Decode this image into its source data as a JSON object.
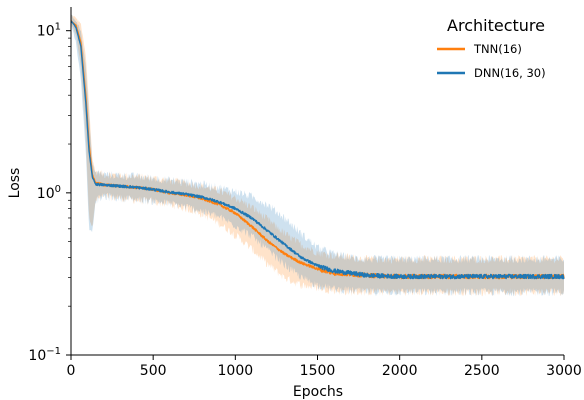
{
  "chart_data": {
    "type": "line",
    "xlabel": "Epochs",
    "ylabel": "Loss",
    "xlim": [
      0,
      3000
    ],
    "ylim": [
      0.1,
      14
    ],
    "yscale": "log",
    "grid": false,
    "legend_title": "Architecture",
    "legend_placement": "top-right",
    "x_ticks": [
      0,
      500,
      1000,
      1500,
      2000,
      2500,
      3000
    ],
    "x_tick_labels": [
      "0",
      "500",
      "1000",
      "1500",
      "2000",
      "2500",
      "3000"
    ],
    "y_ticks": [
      0.1,
      1,
      10
    ],
    "y_tick_labels": [
      {
        "base": "10",
        "exp": "−1"
      },
      {
        "base": "10",
        "exp": "0"
      },
      {
        "base": "10",
        "exp": "1"
      }
    ],
    "series": [
      {
        "name": "TNN(16)",
        "color": "#ff7f0e",
        "x": [
          0,
          30,
          60,
          90,
          110,
          130,
          150,
          200,
          300,
          400,
          500,
          600,
          700,
          800,
          900,
          1000,
          1100,
          1200,
          1300,
          1400,
          1500,
          1600,
          1700,
          1800,
          2000,
          2200,
          2500,
          2800,
          3000
        ],
        "y": [
          11.5,
          10.8,
          8.5,
          4.0,
          2.0,
          1.3,
          1.15,
          1.12,
          1.1,
          1.08,
          1.05,
          1.0,
          0.97,
          0.92,
          0.85,
          0.75,
          0.62,
          0.5,
          0.42,
          0.37,
          0.34,
          0.32,
          0.315,
          0.31,
          0.305,
          0.305,
          0.305,
          0.305,
          0.305
        ],
        "band_lower": [
          11.0,
          9.5,
          6.0,
          2.2,
          0.7,
          0.62,
          0.9,
          0.95,
          0.93,
          0.9,
          0.88,
          0.85,
          0.8,
          0.74,
          0.65,
          0.55,
          0.45,
          0.36,
          0.3,
          0.27,
          0.26,
          0.25,
          0.245,
          0.245,
          0.245,
          0.245,
          0.245,
          0.245,
          0.245
        ],
        "band_upper": [
          12.5,
          12.0,
          11.0,
          7.0,
          3.5,
          1.6,
          1.35,
          1.3,
          1.28,
          1.26,
          1.23,
          1.19,
          1.15,
          1.1,
          1.03,
          0.93,
          0.82,
          0.68,
          0.56,
          0.48,
          0.43,
          0.41,
          0.4,
          0.39,
          0.39,
          0.39,
          0.39,
          0.39,
          0.39
        ]
      },
      {
        "name": "DNN(16, 30)",
        "color": "#1f77b4",
        "x": [
          0,
          30,
          60,
          90,
          110,
          130,
          150,
          200,
          300,
          400,
          500,
          600,
          700,
          800,
          900,
          1000,
          1100,
          1200,
          1300,
          1400,
          1500,
          1600,
          1700,
          1800,
          2000,
          2200,
          2500,
          2800,
          3000
        ],
        "y": [
          11.5,
          10.5,
          8.0,
          3.6,
          1.8,
          1.25,
          1.13,
          1.12,
          1.1,
          1.08,
          1.05,
          1.01,
          0.98,
          0.94,
          0.88,
          0.8,
          0.7,
          0.58,
          0.48,
          0.4,
          0.355,
          0.33,
          0.32,
          0.31,
          0.305,
          0.305,
          0.305,
          0.305,
          0.305
        ],
        "band_lower": [
          11.0,
          8.5,
          5.0,
          1.8,
          0.6,
          0.58,
          0.9,
          0.95,
          0.93,
          0.91,
          0.89,
          0.86,
          0.82,
          0.77,
          0.71,
          0.63,
          0.54,
          0.44,
          0.36,
          0.3,
          0.27,
          0.255,
          0.25,
          0.245,
          0.245,
          0.245,
          0.245,
          0.245,
          0.245
        ],
        "band_upper": [
          12.5,
          11.5,
          10.0,
          6.0,
          3.0,
          1.5,
          1.33,
          1.3,
          1.28,
          1.26,
          1.23,
          1.2,
          1.17,
          1.13,
          1.08,
          1.02,
          0.95,
          0.84,
          0.7,
          0.56,
          0.46,
          0.42,
          0.4,
          0.39,
          0.39,
          0.39,
          0.39,
          0.39,
          0.39
        ]
      }
    ]
  }
}
